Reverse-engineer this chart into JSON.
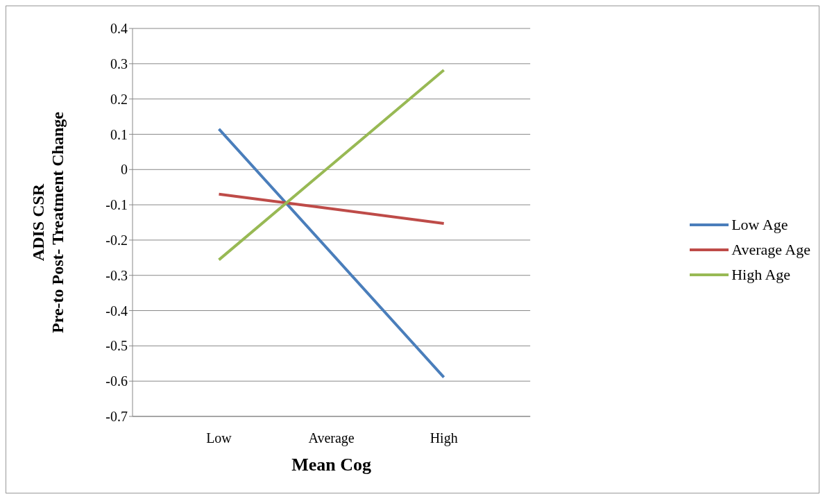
{
  "chart_data": {
    "type": "line",
    "xlabel": "Mean Cog",
    "ylabel": "ADIS CSR\nPre-to Post- Treatment Change",
    "categories": [
      "Low",
      "Average",
      "High"
    ],
    "series": [
      {
        "name": "Low Age",
        "color": "#4a7ebb",
        "values": [
          0.115,
          -0.237,
          -0.589
        ]
      },
      {
        "name": "Average Age",
        "color": "#be4b48",
        "values": [
          -0.07,
          -0.111,
          -0.153
        ]
      },
      {
        "name": "High Age",
        "color": "#98b954",
        "values": [
          -0.256,
          0.013,
          0.282
        ]
      }
    ],
    "ylim": [
      -0.7,
      0.4
    ],
    "yticks": [
      -0.7,
      -0.6,
      -0.5,
      -0.4,
      -0.3,
      -0.2,
      -0.1,
      0,
      0.1,
      0.2,
      0.3,
      0.4
    ],
    "grid": "y",
    "legend": "right",
    "marker": "none",
    "line_style": "solid"
  }
}
